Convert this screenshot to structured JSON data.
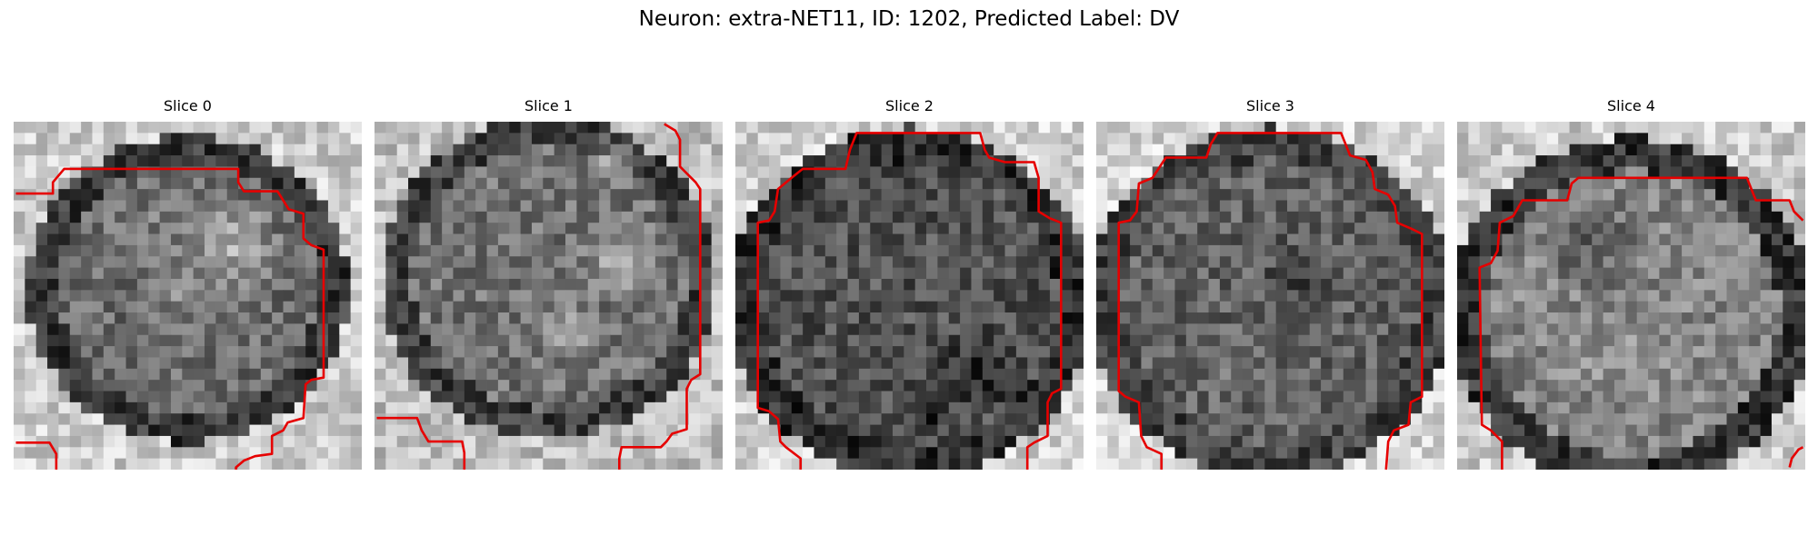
{
  "title": "Neuron: extra-NET11, ID: 1202, Predicted Label: DV",
  "colors": {
    "contour": "#e60000",
    "background": "#ffffff"
  },
  "panels": [
    {
      "label": "Slice 0"
    },
    {
      "label": "Slice 1"
    },
    {
      "label": "Slice 2"
    },
    {
      "label": "Slice 3"
    },
    {
      "label": "Slice 4"
    }
  ]
}
